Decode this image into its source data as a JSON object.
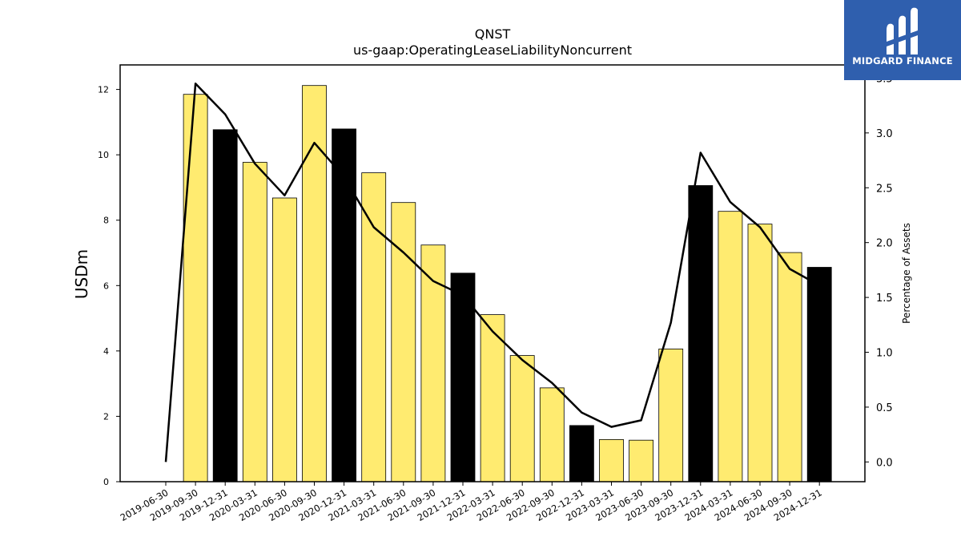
{
  "chart_data": {
    "type": "bar+line",
    "title": "QNST",
    "subtitle": "us-gaap:OperatingLeaseLiabilityNoncurrent",
    "ylabel_left": "USDm",
    "ylabel_right": "Percentage of Assets",
    "ylim_left": [
      0,
      12.75
    ],
    "ylim_right": [
      -0.18,
      3.62
    ],
    "yticks_left": [
      "0",
      "2",
      "4",
      "6",
      "8",
      "10",
      "12"
    ],
    "yticks_right": [
      "0.0",
      "0.5",
      "1.0",
      "1.5",
      "2.0",
      "2.5",
      "3.0",
      "3.5"
    ],
    "categories": [
      "2019-06-30",
      "2019-09-30",
      "2019-12-31",
      "2020-03-31",
      "2020-06-30",
      "2020-09-30",
      "2020-12-31",
      "2021-03-31",
      "2021-06-30",
      "2021-09-30",
      "2021-12-31",
      "2022-03-31",
      "2022-06-30",
      "2022-09-30",
      "2022-12-31",
      "2023-03-31",
      "2023-06-30",
      "2023-09-30",
      "2023-12-31",
      "2024-03-31",
      "2024-06-30",
      "2024-09-30",
      "2024-12-31"
    ],
    "bar_values": [
      null,
      11.85,
      10.77,
      9.77,
      8.68,
      12.12,
      10.79,
      9.45,
      8.54,
      7.24,
      6.38,
      5.11,
      3.86,
      2.87,
      1.72,
      1.29,
      1.27,
      4.06,
      9.06,
      8.27,
      7.88,
      7.01,
      6.56
    ],
    "bar_colors": [
      null,
      "#ffeb70",
      "#000000",
      "#ffeb70",
      "#ffeb70",
      "#ffeb70",
      "#000000",
      "#ffeb70",
      "#ffeb70",
      "#ffeb70",
      "#000000",
      "#ffeb70",
      "#ffeb70",
      "#ffeb70",
      "#000000",
      "#ffeb70",
      "#ffeb70",
      "#ffeb70",
      "#000000",
      "#ffeb70",
      "#ffeb70",
      "#ffeb70",
      "#000000"
    ],
    "line_values": [
      0.0,
      3.45,
      3.17,
      2.72,
      2.43,
      2.91,
      2.6,
      2.14,
      1.91,
      1.65,
      1.52,
      1.19,
      0.93,
      0.72,
      0.45,
      0.32,
      0.38,
      1.27,
      2.82,
      2.37,
      2.14,
      1.76,
      1.61
    ],
    "grid": false,
    "legend": "none"
  },
  "branding": {
    "logo_text": "MIDGARD FINANCE",
    "accent": "#2f5fae"
  }
}
